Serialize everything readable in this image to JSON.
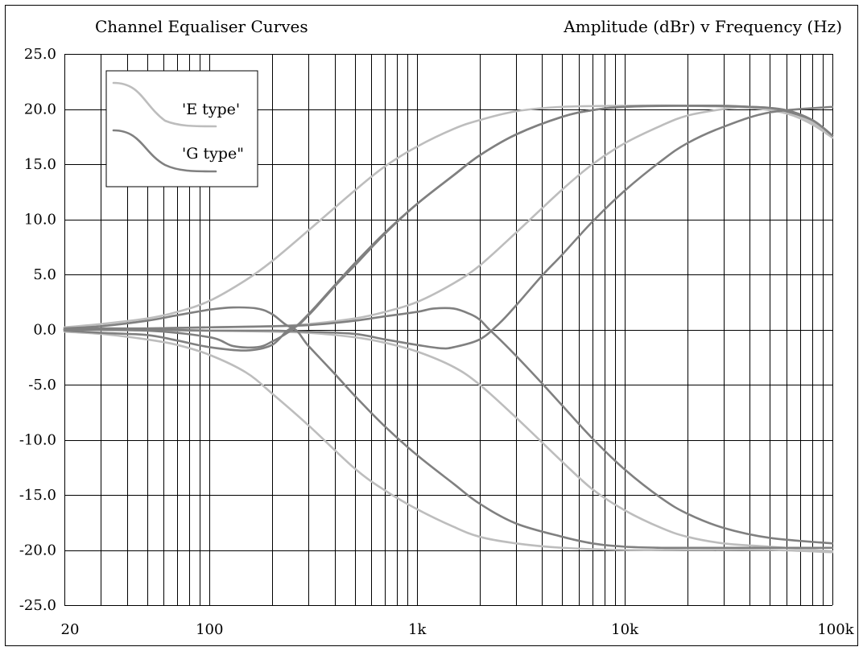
{
  "chart_data": {
    "type": "line",
    "title": "Channel Equaliser Curves",
    "subtitle": "Amplitude (dBr)  v  Frequency (Hz)",
    "x_scale": "log",
    "xlim": [
      20,
      100000
    ],
    "ylim": [
      -25,
      25
    ],
    "x_tick_values": [
      20,
      100,
      1000,
      10000,
      100000
    ],
    "x_tick_labels": [
      "20",
      "100",
      "1k",
      "10k",
      "100k"
    ],
    "y_tick_values": [
      25,
      20,
      15,
      10,
      5,
      0,
      -5,
      -10,
      -15,
      -20,
      -25
    ],
    "y_tick_labels": [
      "25.0",
      "20.0",
      "15.0",
      "10.0",
      "5.0",
      "0.0",
      "-5.0",
      "-10.0",
      "-15.0",
      "-20.0",
      "-25.0"
    ],
    "grid": true,
    "legend_position": "top-left",
    "legend": [
      {
        "label": "'E type'",
        "color": "#bdbdbd"
      },
      {
        "label": "'G type\"",
        "color": "#808080"
      }
    ],
    "series": [
      {
        "group": "E type",
        "color": "#bdbdbd",
        "x": [
          20,
          30,
          50,
          70,
          100,
          150,
          200,
          300,
          500,
          700,
          1000,
          1500,
          2000,
          3000,
          5000,
          10000,
          20000,
          40000,
          60000,
          80000,
          100000
        ],
        "y": [
          0.2,
          0.5,
          1.0,
          1.6,
          2.6,
          4.5,
          6.2,
          9.0,
          12.6,
          14.8,
          16.6,
          18.2,
          19.0,
          19.8,
          20.2,
          20.3,
          20.3,
          20.1,
          19.6,
          18.6,
          17.4
        ]
      },
      {
        "group": "E type",
        "color": "#bdbdbd",
        "x": [
          20,
          50,
          100,
          200,
          300,
          500,
          700,
          1000,
          1500,
          2000,
          3000,
          5000,
          7000,
          10000,
          15000,
          20000,
          30000,
          40000,
          60000,
          80000,
          100000
        ],
        "y": [
          0,
          0.1,
          0.2,
          0.3,
          0.5,
          1.0,
          1.6,
          2.5,
          4.2,
          5.8,
          8.8,
          12.7,
          15.0,
          16.9,
          18.5,
          19.4,
          20.0,
          20.2,
          19.8,
          18.8,
          17.4
        ]
      },
      {
        "group": "E type",
        "color": "#bdbdbd",
        "x": [
          20,
          30,
          50,
          70,
          100,
          150,
          200,
          300,
          500,
          700,
          1000,
          1500,
          2000,
          3000,
          5000,
          10000,
          20000,
          50000,
          100000
        ],
        "y": [
          -0.2,
          -0.4,
          -0.9,
          -1.4,
          -2.3,
          -3.9,
          -5.8,
          -8.7,
          -12.6,
          -14.6,
          -16.3,
          -17.9,
          -18.8,
          -19.4,
          -19.8,
          -20.0,
          -20.0,
          -20.0,
          -20.2
        ]
      },
      {
        "group": "E type",
        "color": "#bdbdbd",
        "x": [
          20,
          50,
          100,
          200,
          300,
          500,
          700,
          1000,
          1500,
          2000,
          3000,
          5000,
          7000,
          10000,
          15000,
          20000,
          30000,
          50000,
          70000,
          100000
        ],
        "y": [
          0,
          -0.1,
          -0.1,
          -0.2,
          -0.3,
          -0.7,
          -1.2,
          -2.0,
          -3.4,
          -5.0,
          -8.0,
          -12.0,
          -14.5,
          -16.4,
          -18.0,
          -18.8,
          -19.4,
          -19.7,
          -19.9,
          -20.1
        ]
      },
      {
        "group": "G type",
        "color": "#808080",
        "x": [
          20,
          30,
          50,
          70,
          100,
          130,
          170,
          200,
          250,
          300,
          400,
          500,
          700,
          1000,
          1500,
          2000,
          3000,
          5000,
          7000,
          10000,
          20000,
          40000,
          60000,
          80000,
          100000
        ],
        "y": [
          0.1,
          0.3,
          0.8,
          1.3,
          1.8,
          2.0,
          1.9,
          1.4,
          0.2,
          1.3,
          3.9,
          5.8,
          8.7,
          11.4,
          14.0,
          15.8,
          17.7,
          19.3,
          19.9,
          20.2,
          20.3,
          20.2,
          19.9,
          19.0,
          17.6
        ]
      },
      {
        "group": "G type",
        "color": "#808080",
        "x": [
          20,
          50,
          100,
          130,
          170,
          200,
          250,
          300,
          400,
          500,
          700,
          1000,
          1500,
          2000,
          3000,
          5000,
          7000,
          10000,
          15000,
          20000,
          30000,
          40000,
          50000,
          60000,
          80000,
          100000
        ],
        "y": [
          0,
          -0.1,
          -0.7,
          -1.5,
          -1.6,
          -1.1,
          0,
          1.4,
          4.0,
          6.0,
          8.8,
          11.4,
          14.0,
          15.8,
          17.7,
          19.3,
          19.9,
          20.2,
          20.3,
          20.3,
          20.3,
          20.2,
          20.1,
          19.8,
          19.0,
          17.6
        ]
      },
      {
        "group": "G type",
        "color": "#808080",
        "x": [
          20,
          30,
          50,
          100,
          200,
          300,
          500,
          700,
          1000,
          1200,
          1500,
          1800,
          2000,
          2200,
          2500,
          3000,
          4000,
          5000,
          7000,
          10000,
          15000,
          20000,
          30000,
          50000,
          100000
        ],
        "y": [
          0,
          0.1,
          0.1,
          0.2,
          0.3,
          0.4,
          0.8,
          1.2,
          1.6,
          1.9,
          1.9,
          1.4,
          0.9,
          0.1,
          -0.9,
          -2.4,
          -4.9,
          -6.9,
          -9.9,
          -12.7,
          -15.3,
          -16.7,
          -18.0,
          -18.9,
          -19.4
        ]
      },
      {
        "group": "G type",
        "color": "#808080",
        "x": [
          20,
          30,
          50,
          70,
          100,
          150,
          200,
          250,
          300,
          400,
          500,
          700,
          1000,
          1500,
          2000,
          3000,
          5000,
          7000,
          10000,
          15000,
          20000,
          30000,
          50000,
          100000
        ],
        "y": [
          -0.1,
          -0.3,
          -0.5,
          -1.0,
          -1.6,
          -1.9,
          -1.4,
          0.1,
          -1.5,
          -4.0,
          -6.0,
          -8.8,
          -11.4,
          -14.0,
          -15.8,
          -17.6,
          -18.8,
          -19.4,
          -19.7,
          -19.8,
          -19.8,
          -19.8,
          -19.8,
          -19.8
        ]
      },
      {
        "group": "G type",
        "color": "#808080",
        "x": [
          20,
          50,
          100,
          200,
          300,
          500,
          700,
          1000,
          1300,
          1500,
          2000,
          2500,
          3000,
          4000,
          5000,
          7000,
          10000,
          15000,
          20000,
          30000,
          50000,
          100000
        ],
        "y": [
          0,
          0,
          -0.1,
          -0.1,
          -0.2,
          -0.4,
          -0.9,
          -1.4,
          -1.7,
          -1.6,
          -0.9,
          0.6,
          2.2,
          4.9,
          6.8,
          9.8,
          12.6,
          15.3,
          16.9,
          18.4,
          19.7,
          20.2
        ]
      }
    ]
  }
}
